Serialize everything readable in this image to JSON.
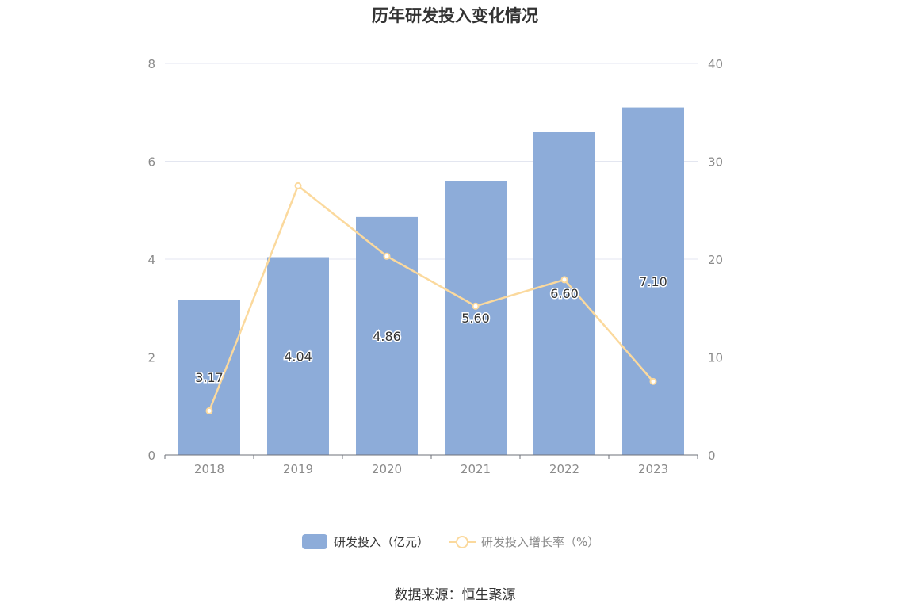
{
  "chart_data": {
    "type": "bar",
    "title": "历年研发投入变化情况",
    "categories": [
      "2018",
      "2019",
      "2020",
      "2021",
      "2022",
      "2023"
    ],
    "series": [
      {
        "name": "研发投入（亿元）",
        "type": "bar",
        "axis": "left",
        "values": [
          3.17,
          4.04,
          4.86,
          5.6,
          6.6,
          7.1
        ],
        "labels": [
          "3.17",
          "4.04",
          "4.86",
          "5.60",
          "6.60",
          "7.10"
        ],
        "color": "#8dacd9"
      },
      {
        "name": "研发投入增长率（%）",
        "type": "line",
        "axis": "right",
        "values": [
          4.5,
          27.5,
          20.3,
          15.2,
          17.9,
          7.5
        ],
        "color": "#fbd99d"
      }
    ],
    "y_left": {
      "min": 0,
      "max": 8,
      "ticks": [
        "0",
        "2",
        "4",
        "6",
        "8"
      ]
    },
    "y_right": {
      "min": 0,
      "max": 40,
      "ticks": [
        "0",
        "10",
        "20",
        "30",
        "40"
      ]
    },
    "grid": true,
    "legend_position": "bottom-center"
  },
  "source_text": "数据来源：恒生聚源",
  "colors": {
    "grid": "#e3e6f0",
    "axis": "#6e7079",
    "tick_text": "#8a8a8a"
  }
}
